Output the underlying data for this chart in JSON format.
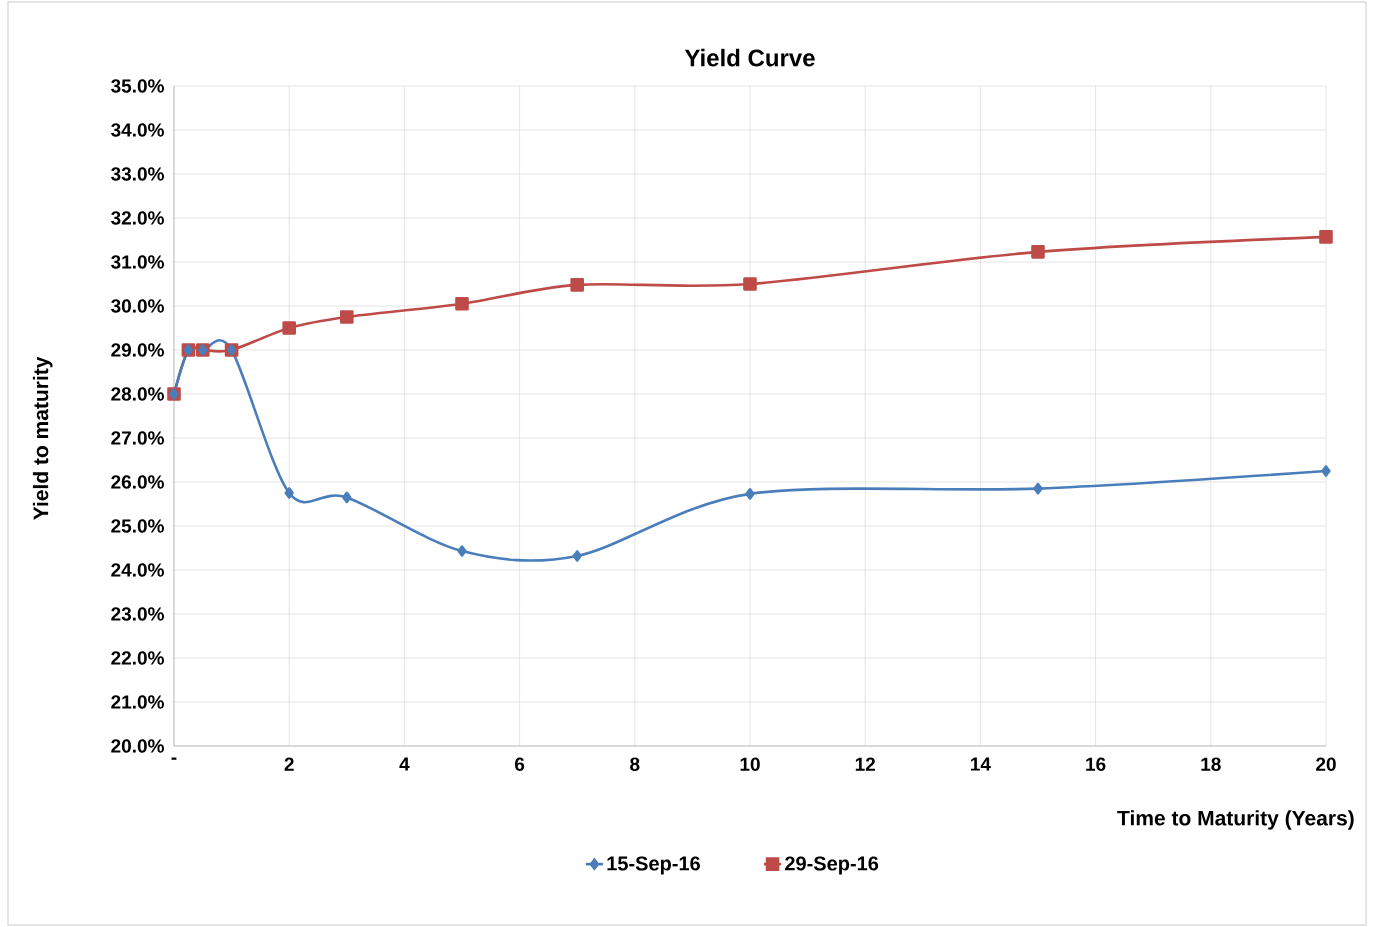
{
  "chart_data": {
    "type": "line",
    "title": "Yield Curve",
    "xlabel": "Time to Maturity (Years)",
    "ylabel": "Yield to maturity",
    "x": [
      0,
      0.25,
      0.5,
      1,
      2,
      3,
      5,
      7,
      10,
      15,
      20
    ],
    "series": [
      {
        "name": "15-Sep-16",
        "color": "#4a7ebb",
        "marker": "diamond",
        "values": [
          28.0,
          29.0,
          29.0,
          29.0,
          25.75,
          25.65,
          24.43,
          24.32,
          25.73,
          25.85,
          26.25
        ]
      },
      {
        "name": "29-Sep-16",
        "color": "#be4b48",
        "marker": "square",
        "values": [
          28.0,
          29.0,
          29.0,
          29.0,
          29.5,
          29.75,
          30.05,
          30.48,
          30.5,
          31.23,
          31.57
        ]
      }
    ],
    "xlim": [
      0,
      20
    ],
    "xticks": [
      {
        "value": 0,
        "label": "-"
      },
      2,
      4,
      6,
      8,
      10,
      12,
      14,
      16,
      18,
      20
    ],
    "ylim": [
      20,
      35
    ],
    "yticks": [
      {
        "value": 20,
        "label": "20.0%"
      },
      {
        "value": 21,
        "label": "21.0%"
      },
      {
        "value": 22,
        "label": "22.0%"
      },
      {
        "value": 23,
        "label": "23.0%"
      },
      {
        "value": 24,
        "label": "24.0%"
      },
      {
        "value": 25,
        "label": "25.0%"
      },
      {
        "value": 26,
        "label": "26.0%"
      },
      {
        "value": 27,
        "label": "27.0%"
      },
      {
        "value": 28,
        "label": "28.0%"
      },
      {
        "value": 29,
        "label": "29.0%"
      },
      {
        "value": 30,
        "label": "30.0%"
      },
      {
        "value": 31,
        "label": "31.0%"
      },
      {
        "value": 32,
        "label": "32.0%"
      },
      {
        "value": 33,
        "label": "33.0%"
      },
      {
        "value": 34,
        "label": "34.0%"
      },
      {
        "value": 35,
        "label": "35.0%"
      }
    ],
    "grid": true,
    "legend": "bottom",
    "line_style": "solid"
  }
}
